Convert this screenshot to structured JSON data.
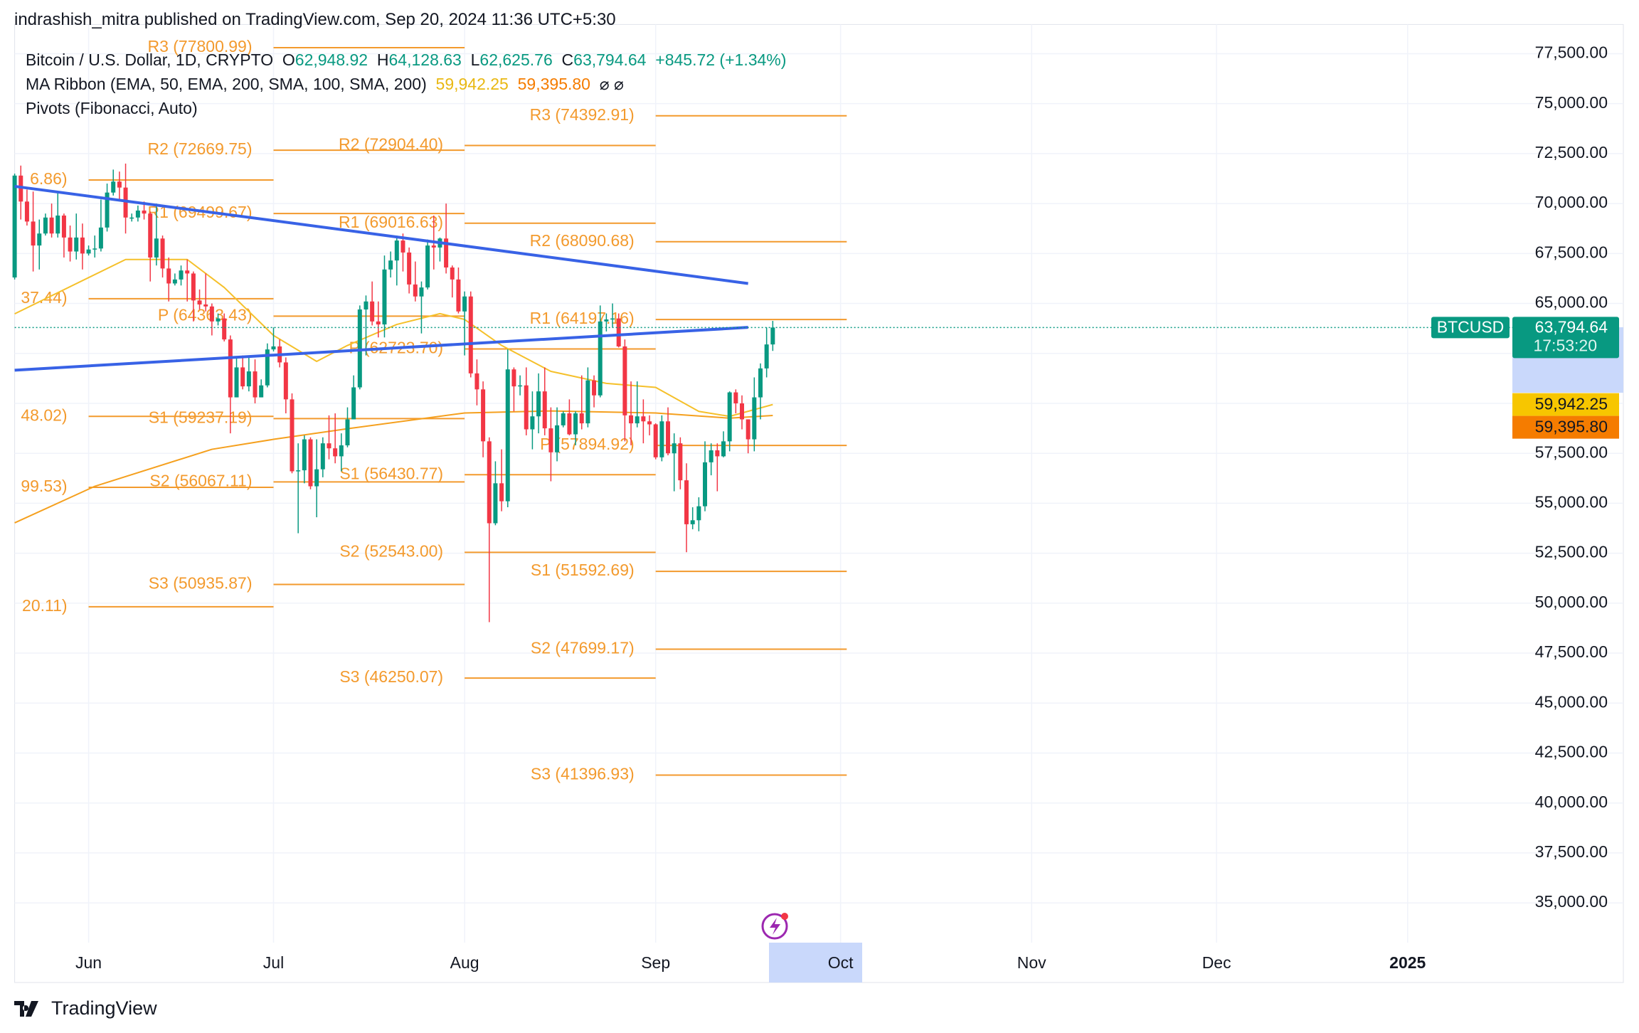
{
  "header": {
    "byline": "indrashish_mitra published on TradingView.com, Sep 20, 2024 11:36 UTC+5:30"
  },
  "legend": {
    "symbol": "Bitcoin / U.S. Dollar, 1D, CRYPTO",
    "ohlc": [
      {
        "key": "O",
        "value": "62,948.92"
      },
      {
        "key": "H",
        "value": "64,128.63"
      },
      {
        "key": "L",
        "value": "62,625.76"
      },
      {
        "key": "C",
        "value": "63,794.64"
      }
    ],
    "change": "+845.72 (+1.34%)",
    "ma": {
      "title": "MA Ribbon (EMA, 50, EMA, 200, SMA, 100, SMA, 200)",
      "values": [
        "59,942.25",
        "59,395.80"
      ],
      "icons": "⌀ ⌀"
    },
    "pivots": "Pivots (Fibonacci, Auto)"
  },
  "footer": "TradingView",
  "chart_data": {
    "type": "candlestick",
    "up_color": "#089981",
    "down_color": "#f23645",
    "xlim": [
      1,
      262
    ],
    "xticks": [
      {
        "value": 13,
        "label": "Jun"
      },
      {
        "value": 43,
        "label": "Jul"
      },
      {
        "value": 74,
        "label": "Aug"
      },
      {
        "value": 105,
        "label": "Sep"
      },
      {
        "value": 135,
        "label": "Oct"
      },
      {
        "value": 166,
        "label": "Nov"
      },
      {
        "value": 196,
        "label": "Dec"
      },
      {
        "value": 227,
        "label": "2025"
      }
    ],
    "ylim": [
      33100,
      78250
    ],
    "yticks": [
      {
        "value": 35000,
        "label": "35,000.00"
      },
      {
        "value": 37500,
        "label": "37,500.00"
      },
      {
        "value": 40000,
        "label": "40,000.00"
      },
      {
        "value": 42500,
        "label": "42,500.00"
      },
      {
        "value": 45000,
        "label": "45,000.00"
      },
      {
        "value": 47500,
        "label": "47,500.00"
      },
      {
        "value": 50000,
        "label": "50,000.00"
      },
      {
        "value": 52500,
        "label": "52,500.00"
      },
      {
        "value": 55000,
        "label": "55,000.00"
      },
      {
        "value": 57500,
        "label": "57,500.00"
      },
      {
        "value": 60000,
        "label": "60,000.00"
      },
      {
        "value": 62500,
        "label": "62,500.00"
      },
      {
        "value": 65000,
        "label": "65,000.00"
      },
      {
        "value": 67500,
        "label": "67,500.00"
      },
      {
        "value": 70000,
        "label": "70,000.00"
      },
      {
        "value": 72500,
        "label": "72,500.00"
      },
      {
        "value": 75000,
        "label": "75,000.00"
      },
      {
        "value": 77500,
        "label": "77,500.00"
      }
    ],
    "grid": true,
    "x": [
      1,
      2,
      3,
      4,
      5,
      6,
      7,
      8,
      9,
      10,
      11,
      12,
      13,
      14,
      15,
      16,
      17,
      18,
      19,
      20,
      21,
      22,
      23,
      24,
      25,
      26,
      27,
      28,
      29,
      30,
      31,
      32,
      33,
      34,
      35,
      36,
      37,
      38,
      39,
      40,
      41,
      42,
      43,
      44,
      45,
      46,
      47,
      48,
      49,
      50,
      51,
      52,
      53,
      54,
      55,
      56,
      57,
      58,
      59,
      60,
      61,
      62,
      63,
      64,
      65,
      66,
      67,
      68,
      69,
      70,
      71,
      72,
      73,
      74,
      75,
      76,
      77,
      78,
      79,
      80,
      81,
      82,
      83,
      84,
      85,
      86,
      87,
      88,
      89,
      90,
      91,
      92,
      93,
      94,
      95,
      96,
      97,
      98,
      99,
      100,
      101,
      102,
      103,
      104,
      105,
      106,
      107,
      108,
      109,
      110,
      111,
      112,
      113,
      114,
      115,
      116,
      117,
      118,
      119,
      120,
      121,
      122,
      123,
      124
    ],
    "candles": [
      [
        66300,
        71500,
        66200,
        71400
      ],
      [
        71400,
        71900,
        69200,
        70100
      ],
      [
        70100,
        70700,
        68900,
        69100
      ],
      [
        69100,
        70600,
        66600,
        67900
      ],
      [
        67900,
        69200,
        66700,
        68500
      ],
      [
        68500,
        69500,
        68400,
        69300
      ],
      [
        69300,
        70000,
        68300,
        68500
      ],
      [
        68500,
        70600,
        68300,
        69400
      ],
      [
        69400,
        69500,
        67300,
        68300
      ],
      [
        68300,
        68900,
        67100,
        67600
      ],
      [
        67600,
        69500,
        67200,
        68300
      ],
      [
        68300,
        69000,
        66700,
        67500
      ],
      [
        67500,
        67900,
        67400,
        67700
      ],
      [
        67700,
        68400,
        67300,
        67750
      ],
      [
        67750,
        70200,
        67600,
        68800
      ],
      [
        68800,
        71000,
        68600,
        70550
      ],
      [
        70550,
        71700,
        70400,
        71100
      ],
      [
        71100,
        71600,
        70200,
        70800
      ],
      [
        70800,
        72000,
        68500,
        69300
      ],
      [
        69300,
        69500,
        69100,
        69300
      ],
      [
        69300,
        69900,
        69100,
        69650
      ],
      [
        69650,
        70100,
        69200,
        69500
      ],
      [
        69500,
        69600,
        66100,
        67300
      ],
      [
        67300,
        70000,
        66900,
        68250
      ],
      [
        68250,
        68400,
        66300,
        66750
      ],
      [
        66750,
        67300,
        65100,
        66000
      ],
      [
        66000,
        66500,
        65900,
        66200
      ],
      [
        66200,
        66900,
        65900,
        66650
      ],
      [
        66650,
        67200,
        65100,
        66500
      ],
      [
        66500,
        66600,
        64100,
        65150
      ],
      [
        65150,
        65700,
        64700,
        64950
      ],
      [
        64950,
        66500,
        64600,
        64850
      ],
      [
        64850,
        65000,
        63400,
        64100
      ],
      [
        64100,
        64500,
        63900,
        64250
      ],
      [
        64250,
        64500,
        63100,
        63200
      ],
      [
        63200,
        63400,
        58500,
        60300
      ],
      [
        60300,
        62300,
        60300,
        61800
      ],
      [
        61800,
        62400,
        60700,
        60850
      ],
      [
        60850,
        62300,
        60600,
        61600
      ],
      [
        61600,
        62200,
        60000,
        60300
      ],
      [
        60300,
        61200,
        60300,
        60900
      ],
      [
        60900,
        63000,
        60800,
        62700
      ],
      [
        62700,
        63800,
        62600,
        62850
      ],
      [
        62850,
        63200,
        61800,
        62050
      ],
      [
        62050,
        62300,
        59500,
        60200
      ],
      [
        60200,
        60500,
        56500,
        56600
      ],
      [
        56600,
        58000,
        53500,
        56650
      ],
      [
        56650,
        58400,
        56000,
        58200
      ],
      [
        58200,
        58300,
        55700,
        55850
      ],
      [
        55850,
        58200,
        54300,
        56700
      ],
      [
        56700,
        58300,
        56300,
        58000
      ],
      [
        58000,
        59400,
        57200,
        57750
      ],
      [
        57750,
        59500,
        57000,
        57350
      ],
      [
        57350,
        58500,
        56600,
        57900
      ],
      [
        57900,
        59800,
        57800,
        59200
      ],
      [
        59200,
        61400,
        59200,
        60800
      ],
      [
        60800,
        64900,
        60700,
        64700
      ],
      [
        64700,
        65400,
        62400,
        65100
      ],
      [
        65100,
        66100,
        63900,
        64100
      ],
      [
        64100,
        65100,
        63300,
        63950
      ],
      [
        63950,
        67400,
        63300,
        66700
      ],
      [
        66700,
        67600,
        66300,
        67150
      ],
      [
        67150,
        68400,
        65900,
        68150
      ],
      [
        68150,
        68500,
        66600,
        67550
      ],
      [
        67550,
        67800,
        65500,
        65950
      ],
      [
        65950,
        67100,
        65100,
        65350
      ],
      [
        65350,
        66100,
        63500,
        65800
      ],
      [
        65800,
        68200,
        65700,
        67900
      ],
      [
        67900,
        69400,
        66700,
        67800
      ],
      [
        67800,
        68300,
        67100,
        68250
      ],
      [
        68250,
        70000,
        66500,
        66800
      ],
      [
        66800,
        66900,
        65300,
        66200
      ],
      [
        66200,
        66800,
        64500,
        64600
      ],
      [
        64600,
        65600,
        62400,
        65350
      ],
      [
        65350,
        65600,
        61300,
        61500
      ],
      [
        61500,
        62200,
        59900,
        60700
      ],
      [
        60700,
        61100,
        57300,
        58100
      ],
      [
        58100,
        58300,
        49050,
        54000
      ],
      [
        54000,
        57100,
        53900,
        56000
      ],
      [
        56000,
        57700,
        54600,
        55100
      ],
      [
        55100,
        62700,
        54800,
        61700
      ],
      [
        61700,
        61800,
        59600,
        60850
      ],
      [
        60850,
        61400,
        60400,
        60900
      ],
      [
        60900,
        61800,
        58400,
        58700
      ],
      [
        58700,
        60600,
        57700,
        59350
      ],
      [
        59350,
        61500,
        58500,
        60600
      ],
      [
        60600,
        61800,
        58400,
        58750
      ],
      [
        58750,
        59800,
        56100,
        57550
      ],
      [
        57550,
        59800,
        57100,
        58900
      ],
      [
        58900,
        59600,
        58800,
        59500
      ],
      [
        59500,
        60200,
        58400,
        58450
      ],
      [
        58450,
        59600,
        57900,
        59500
      ],
      [
        59500,
        61400,
        58700,
        59000
      ],
      [
        59000,
        61800,
        58800,
        61150
      ],
      [
        61150,
        61400,
        59800,
        60400
      ],
      [
        60400,
        64900,
        60300,
        64100
      ],
      [
        64100,
        64500,
        63600,
        64200
      ],
      [
        64200,
        65000,
        63800,
        64250
      ],
      [
        64250,
        64500,
        62800,
        62850
      ],
      [
        62850,
        63200,
        58100,
        59400
      ],
      [
        59400,
        61100,
        57900,
        59000
      ],
      [
        59000,
        61100,
        58800,
        59350
      ],
      [
        59350,
        60200,
        58000,
        59100
      ],
      [
        59100,
        59400,
        58400,
        58950
      ],
      [
        58950,
        59000,
        57200,
        57300
      ],
      [
        57300,
        59400,
        57100,
        59100
      ],
      [
        59100,
        59800,
        57400,
        57500
      ],
      [
        57500,
        58500,
        55600,
        58000
      ],
      [
        58000,
        58300,
        55700,
        56150
      ],
      [
        56150,
        57000,
        52550,
        53950
      ],
      [
        53950,
        54800,
        53700,
        54150
      ],
      [
        54150,
        55300,
        53600,
        54850
      ],
      [
        54850,
        58100,
        54600,
        57050
      ],
      [
        57050,
        58000,
        56400,
        57650
      ],
      [
        57650,
        58000,
        55600,
        57350
      ],
      [
        57350,
        58600,
        57300,
        58100
      ],
      [
        58100,
        60600,
        57600,
        60550
      ],
      [
        60550,
        60700,
        59500,
        60000
      ],
      [
        60000,
        60400,
        58700,
        59200
      ],
      [
        59200,
        59200,
        57500,
        58200
      ],
      [
        58200,
        61300,
        57600,
        60300
      ],
      [
        60300,
        62000,
        59200,
        61750
      ],
      [
        61750,
        63800,
        61300,
        62948.92
      ],
      [
        62948.92,
        64128.63,
        62625.76,
        63794.64
      ]
    ],
    "ma_lines": [
      {
        "color": "#f5c02a",
        "x": [
          1,
          19,
          29,
          35,
          43,
          50,
          55,
          63,
          70,
          74,
          80,
          88,
          97,
          105,
          112,
          117,
          124
        ],
        "values": [
          64482,
          67200,
          67200,
          65800,
          63400,
          62100,
          62900,
          63950,
          64490,
          64200,
          62900,
          61600,
          61000,
          60800,
          59600,
          59350,
          59942.25
        ]
      },
      {
        "color": "#f5a01e",
        "x": [
          1,
          14,
          33,
          43,
          55,
          74,
          88,
          105,
          117,
          124
        ],
        "values": [
          54020,
          55850,
          57700,
          58200,
          58730,
          59520,
          59620,
          59520,
          59260,
          59395.8
        ]
      }
    ],
    "trendlines": [
      {
        "color": "#3862e6",
        "x": [
          1,
          120
        ],
        "values": [
          70861,
          65999
        ]
      },
      {
        "color": "#3862e6",
        "x": [
          1,
          120
        ],
        "values": [
          61659,
          63803
        ]
      }
    ],
    "pivot_color": "#f39a2d",
    "pivots": [
      {
        "from": 13,
        "to": 43,
        "levels": [
          {
            "label": "6.86)",
            "value": 71176.86
          },
          {
            "label": "37.44)",
            "value": 65237.44
          },
          {
            "label": "48.02)",
            "value": 59348.02
          },
          {
            "label": "99.53)",
            "value": 55799.53
          },
          {
            "label": "20.11)",
            "value": 49820.11
          }
        ]
      },
      {
        "from": 43,
        "to": 74,
        "levels": [
          {
            "label": "R3 (77800.99)",
            "value": 77800.99
          },
          {
            "label": "R2 (72669.75)",
            "value": 72669.75
          },
          {
            "label": "R1 (69499.67)",
            "value": 69499.67
          },
          {
            "label": "P (64363.43)",
            "value": 64363.43
          },
          {
            "label": "S1 (59237.19)",
            "value": 59237.19
          },
          {
            "label": "S2 (56067.11)",
            "value": 56067.11
          },
          {
            "label": "S3 (50935.87)",
            "value": 50935.87
          }
        ]
      },
      {
        "from": 74,
        "to": 105,
        "levels": [
          {
            "label": "R2 (72904.40)",
            "value": 72904.4
          },
          {
            "label": "R1 (69016.63)",
            "value": 69016.63
          },
          {
            "label": "P (62723.70)",
            "value": 62723.7
          },
          {
            "label": "S1 (56430.77)",
            "value": 56430.77
          },
          {
            "label": "S2 (52543.00)",
            "value": 52543.0
          },
          {
            "label": "S3 (46250.07)",
            "value": 46250.07
          }
        ]
      },
      {
        "from": 105,
        "to": 136,
        "levels": [
          {
            "label": "R3 (74392.91)",
            "value": 74392.91
          },
          {
            "label": "R2 (68090.68)",
            "value": 68090.68
          },
          {
            "label": "R1 (64197.16)",
            "value": 64197.16
          },
          {
            "label": "P (57894.92)",
            "value": 57894.92
          },
          {
            "label": "S1 (51592.69)",
            "value": 51592.69
          },
          {
            "label": "S2 (47699.17)",
            "value": 47699.17
          },
          {
            "label": "S3 (41396.93)",
            "value": 41396.93
          }
        ]
      }
    ],
    "last": {
      "symbol": "BTCUSD",
      "label": "63,794.64",
      "value": 63794.64,
      "countdown": "17:53:20",
      "color": "#089981"
    },
    "price_tags": [
      {
        "label": "59,942.25",
        "value": 59942.25,
        "color": "#f7c600"
      },
      {
        "label": "59,395.80",
        "value": 59395.8,
        "color": "#f57c00"
      }
    ]
  }
}
